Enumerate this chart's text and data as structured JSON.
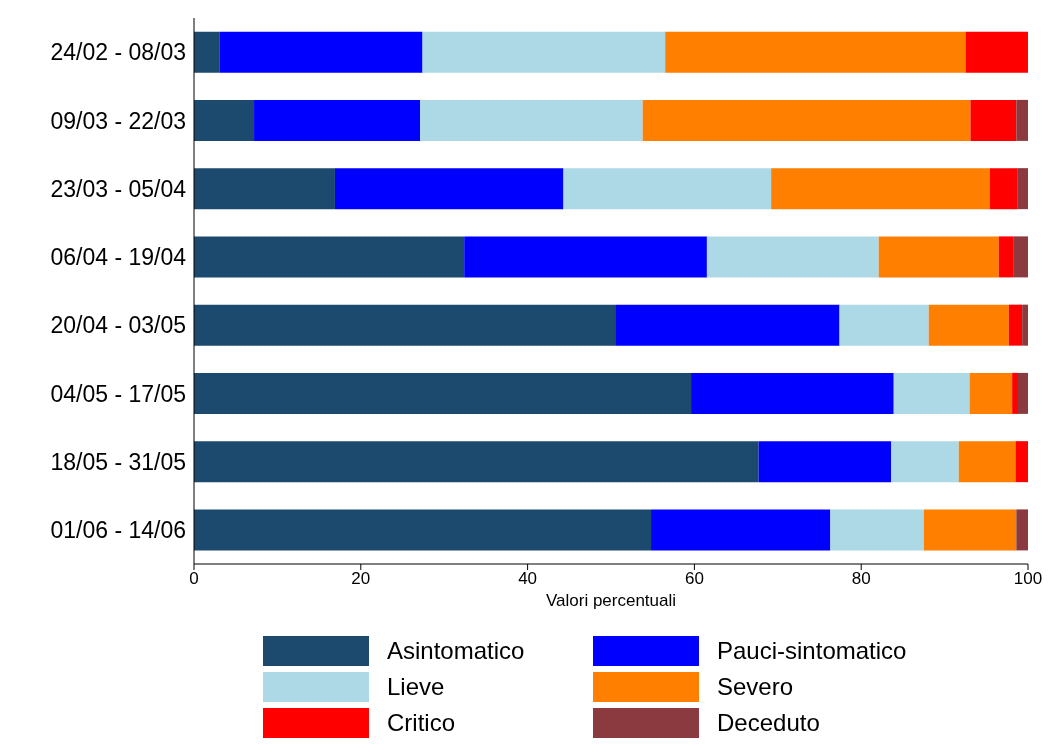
{
  "chart_data": {
    "type": "bar",
    "orientation": "horizontal",
    "stacked": true,
    "xlabel": "Valori percentuali",
    "categories": [
      "24/02 - 08/03",
      "09/03 - 22/03",
      "23/03 - 05/04",
      "06/04 - 19/04",
      "20/04 - 03/05",
      "04/05 - 17/05",
      "18/05 - 31/05",
      "01/06 - 14/06"
    ],
    "series": [
      {
        "name": "Asintomatico",
        "color": "#1c4a6e",
        "values": [
          3.1,
          7.2,
          16.9,
          32.4,
          50.5,
          59.6,
          67.7,
          54.8
        ]
      },
      {
        "name": "Pauci-sintomatico",
        "color": "#0000ff",
        "values": [
          24.3,
          19.9,
          27.4,
          29.1,
          26.9,
          24.3,
          15.9,
          21.5
        ]
      },
      {
        "name": "Lieve",
        "color": "#add8e6",
        "values": [
          29.1,
          26.7,
          24.9,
          20.6,
          10.7,
          9.1,
          8.1,
          11.2
        ]
      },
      {
        "name": "Severo",
        "color": "#ff7f00",
        "values": [
          36.0,
          39.3,
          26.2,
          14.4,
          9.6,
          5.1,
          6.8,
          11.1
        ]
      },
      {
        "name": "Critico",
        "color": "#ff0000",
        "values": [
          7.5,
          5.5,
          3.3,
          1.8,
          1.6,
          0.7,
          1.5,
          0
        ]
      },
      {
        "name": "Deceduto",
        "color": "#8b3a3f",
        "values": [
          0,
          1.4,
          1.3,
          1.7,
          0.7,
          1.2,
          0,
          1.4
        ]
      }
    ],
    "xlim": [
      0,
      100
    ],
    "xticks": [
      0,
      20,
      40,
      60,
      80,
      100
    ],
    "legend": "bottom"
  }
}
